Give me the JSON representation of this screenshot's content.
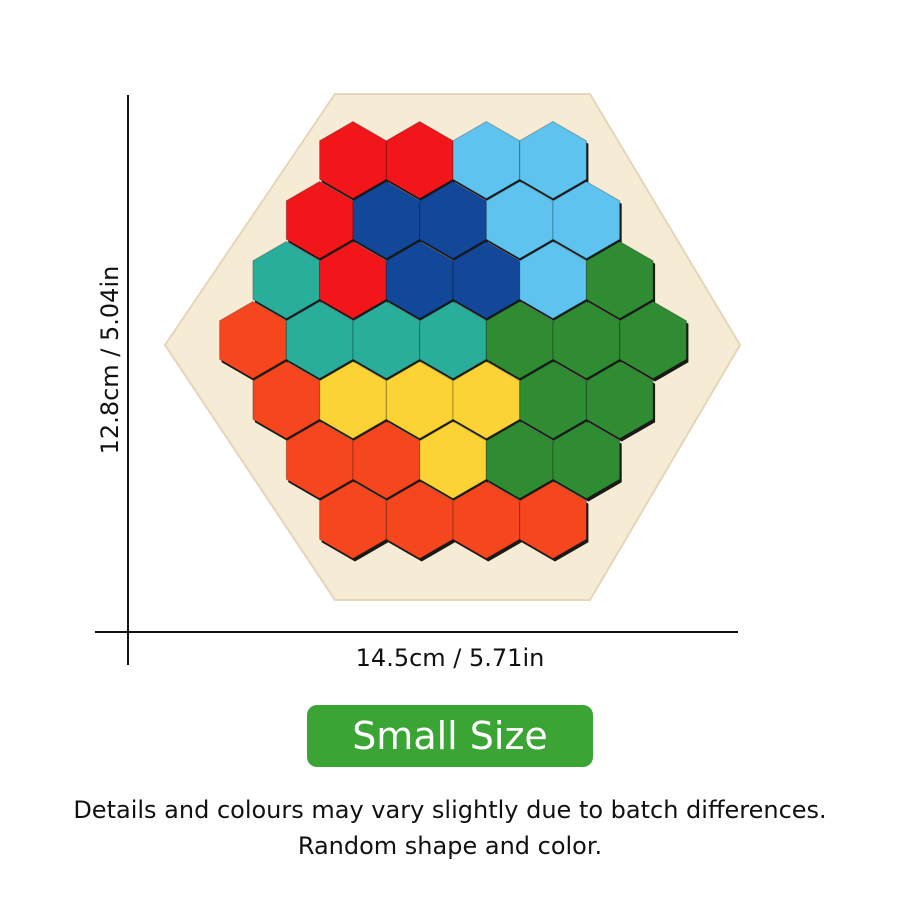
{
  "dimensions": {
    "width_label": "14.5cm / 5.71in",
    "height_label": "12.8cm / 5.04in"
  },
  "size_badge": {
    "label": "Small Size",
    "color": "#3aa535"
  },
  "notes": [
    "Details and colours may vary slightly due to batch differences.",
    "Random shape and color."
  ],
  "puzzle": {
    "board_color": "#f6ecd6",
    "palette": {
      "red": "#f2161b",
      "lightblue": "#5ec3ee",
      "navy": "#12479a",
      "teal": "#2aae9c",
      "green": "#2f8c32",
      "orange": "#f6461d",
      "yellow": "#fbd334"
    },
    "rows": [
      [
        "red",
        "red",
        "lightblue",
        "lightblue"
      ],
      [
        "red",
        "navy",
        "navy",
        "lightblue",
        "lightblue"
      ],
      [
        "teal",
        "red",
        "navy",
        "navy",
        "lightblue",
        "green"
      ],
      [
        "orange",
        "teal",
        "teal",
        "teal",
        "green",
        "green",
        "green"
      ],
      [
        "orange",
        "yellow",
        "yellow",
        "yellow",
        "green",
        "green"
      ],
      [
        "orange",
        "orange",
        "yellow",
        "green",
        "green"
      ],
      [
        "orange",
        "orange",
        "orange",
        "orange"
      ]
    ]
  }
}
